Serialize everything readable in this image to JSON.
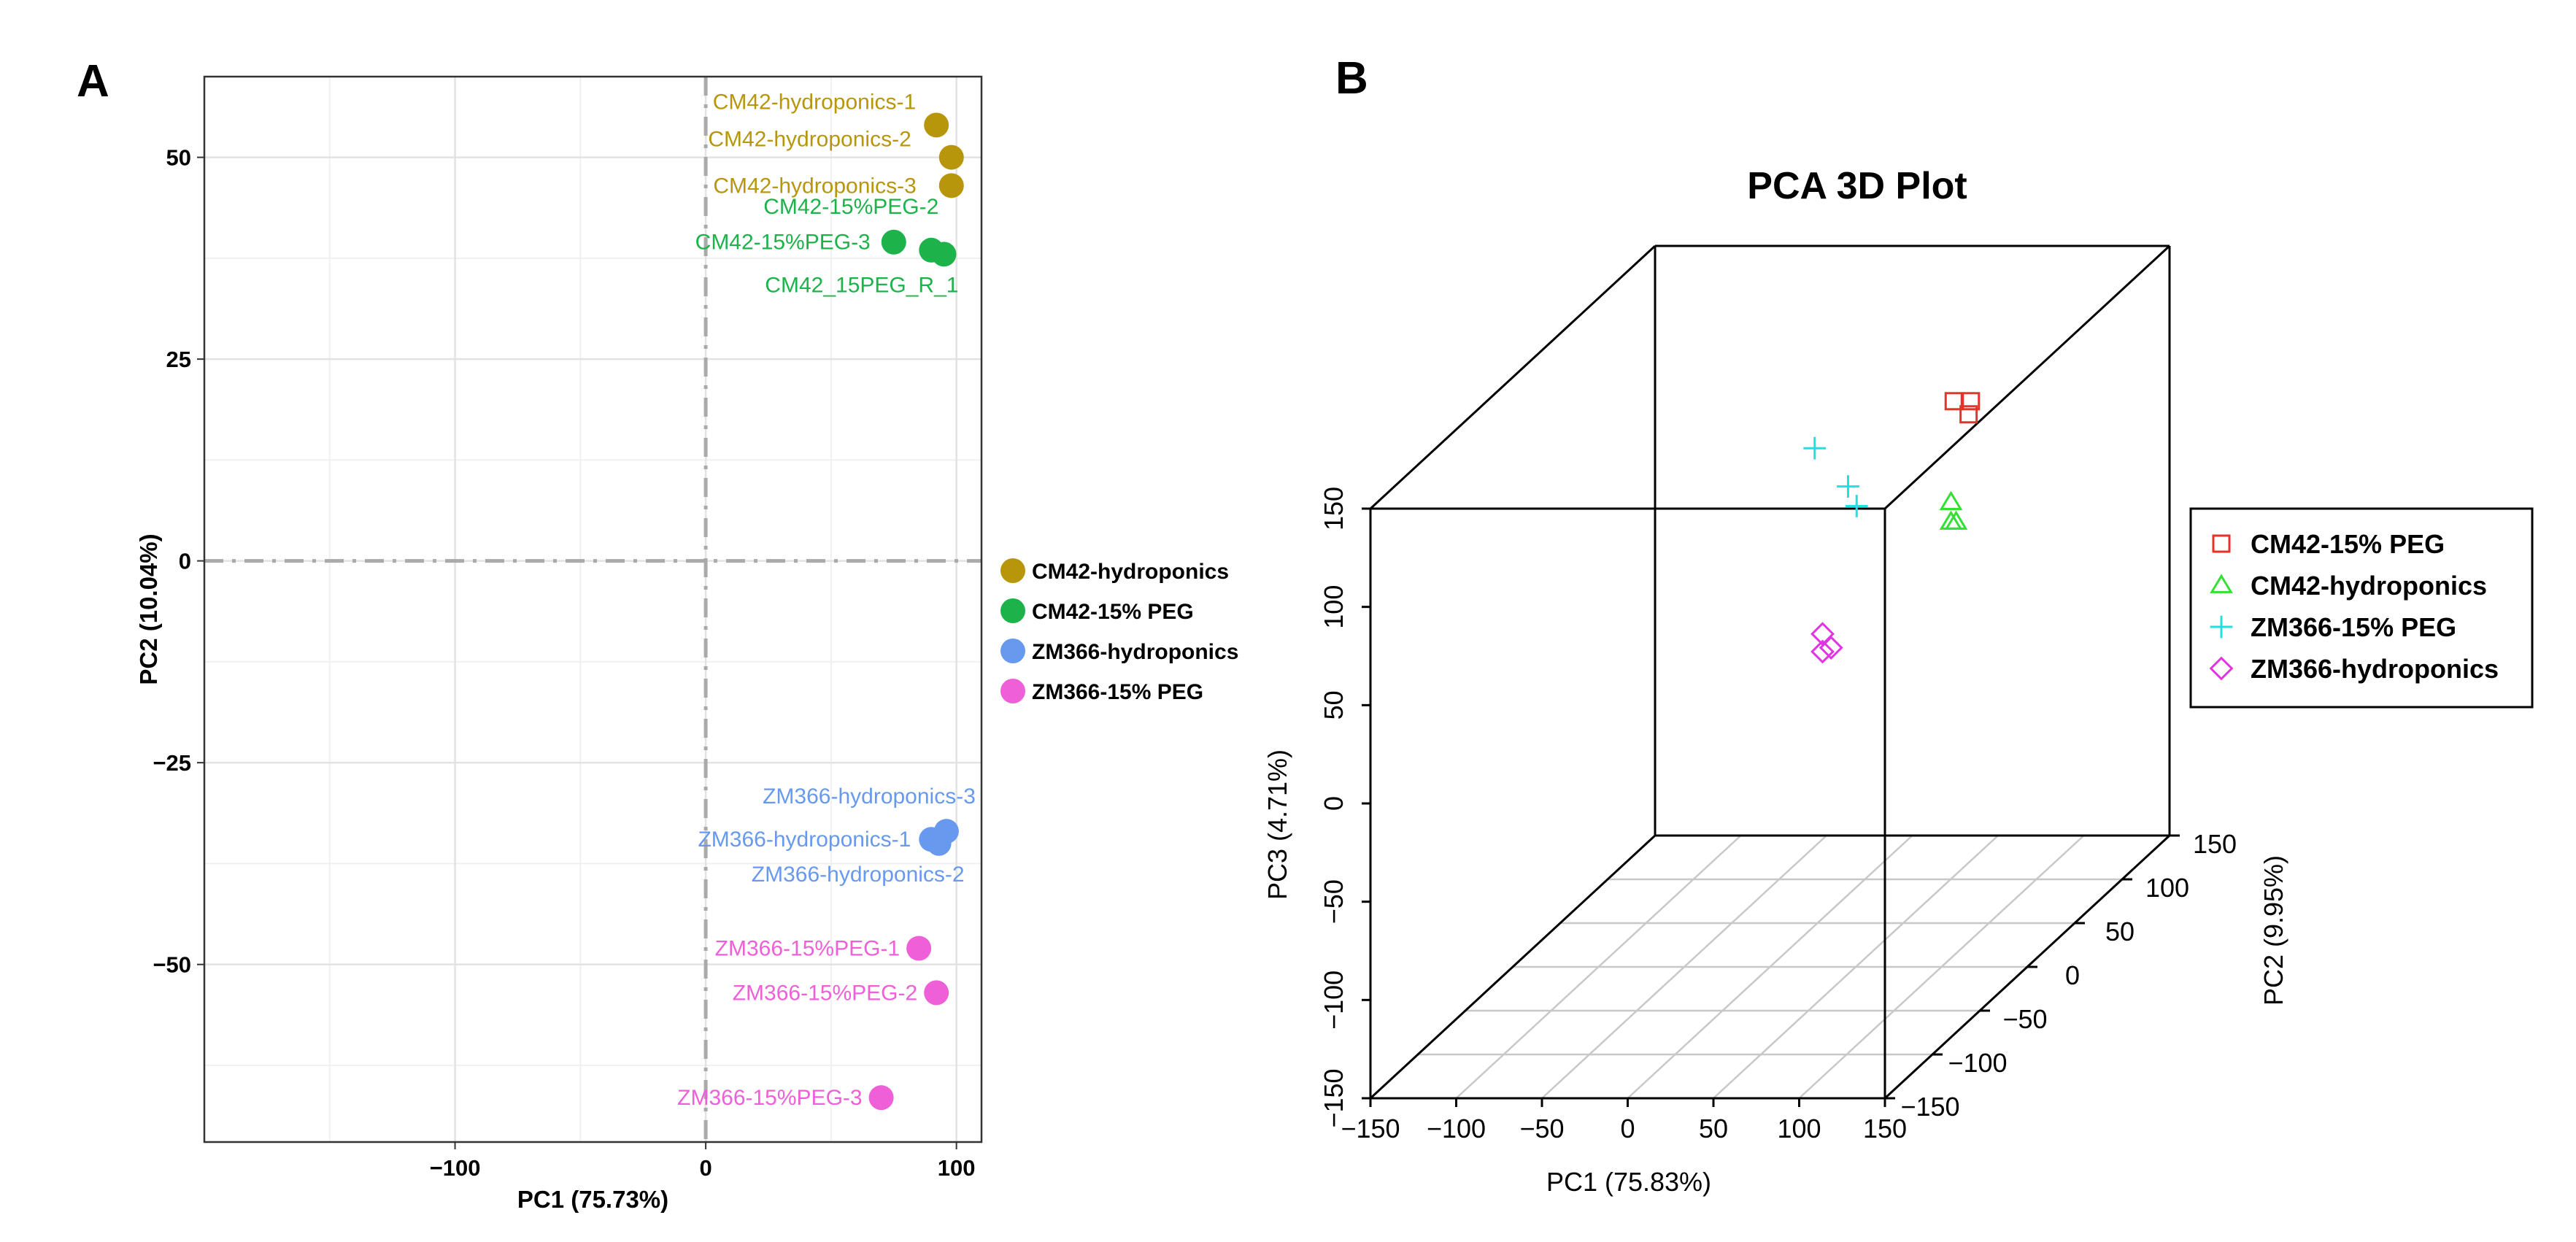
{
  "panels": {
    "left_letter": "A",
    "right_letter": "B"
  },
  "chart_data": [
    {
      "type": "scatter",
      "title": "",
      "xlabel": "PC1 (75.73%)",
      "ylabel": "PC2 (10.04%)",
      "xlim": [
        -200,
        110
      ],
      "ylim": [
        -72,
        60
      ],
      "xticks": [
        -100,
        0,
        100
      ],
      "yticks": [
        -50,
        -25,
        0,
        25,
        50
      ],
      "xtick_labels": [
        "−100",
        "0",
        "100"
      ],
      "ytick_labels": [
        "−50",
        "−25",
        "0",
        "25",
        "50"
      ],
      "grid": true,
      "legend_position": "right",
      "series": [
        {
          "name": "CM42-hydroponics",
          "color": "#B8960C",
          "points": [
            {
              "x": 92,
              "y": 54,
              "label": "CM42-hydroponics-1"
            },
            {
              "x": 98,
              "y": 50,
              "label": "CM42-hydroponics-2"
            },
            {
              "x": 98,
              "y": 46.5,
              "label": "CM42-hydroponics-3"
            }
          ]
        },
        {
          "name": "CM42-15% PEG",
          "color": "#1DB24A",
          "points": [
            {
              "x": 90,
              "y": 38.5,
              "label": "CM42-15%PEG-2"
            },
            {
              "x": 75,
              "y": 39.5,
              "label": "CM42-15%PEG-3"
            },
            {
              "x": 95,
              "y": 38,
              "label": "CM42_15PEG_R_1"
            }
          ]
        },
        {
          "name": "ZM366-hydroponics",
          "color": "#6799EE",
          "points": [
            {
              "x": 96,
              "y": -33.5,
              "label": "ZM366-hydroponics-3"
            },
            {
              "x": 90,
              "y": -34.5,
              "label": "ZM366-hydroponics-1"
            },
            {
              "x": 93,
              "y": -35,
              "label": "ZM366-hydroponics-2"
            }
          ]
        },
        {
          "name": "ZM366-15% PEG",
          "color": "#EE5FD8",
          "points": [
            {
              "x": 85,
              "y": -48,
              "label": "ZM366-15%PEG-1"
            },
            {
              "x": 92,
              "y": -53.5,
              "label": "ZM366-15%PEG-2"
            },
            {
              "x": 70,
              "y": -66.5,
              "label": "ZM366-15%PEG-3"
            }
          ]
        }
      ]
    },
    {
      "type": "scatter3d",
      "title": "PCA 3D Plot",
      "xlabel": "PC1 (75.83%)",
      "ylabel": "PC2 (9.95%)",
      "zlabel": "PC3 (4.71%)",
      "xlim": [
        -150,
        150
      ],
      "ylim": [
        -150,
        150
      ],
      "zlim": [
        -150,
        150
      ],
      "xticks": [
        -150,
        -100,
        -50,
        0,
        50,
        100,
        150
      ],
      "yticks": [
        -150,
        -100,
        -50,
        0,
        50,
        100,
        150
      ],
      "zticks": [
        -150,
        -100,
        -50,
        0,
        50,
        100,
        150
      ],
      "xtick_labels": [
        "−150",
        "−100",
        "−50",
        "0",
        "50",
        "100",
        "150"
      ],
      "ytick_labels": [
        "−150",
        "−100",
        "−50",
        "0",
        "50",
        "100",
        "150"
      ],
      "ztick_labels": [
        "−150",
        "−100",
        "−50",
        "0",
        "50",
        "100",
        "150"
      ],
      "legend_position": "right",
      "series": [
        {
          "name": "CM42-15% PEG",
          "color": "#E8312A",
          "marker": "square",
          "points": [
            {
              "x": 85,
              "y": 40,
              "z": 120
            },
            {
              "x": 95,
              "y": 40,
              "z": 120
            },
            {
              "x": 97,
              "y": 34,
              "z": 116
            }
          ]
        },
        {
          "name": "CM42-hydroponics",
          "color": "#33E033",
          "marker": "triangle",
          "points": [
            {
              "x": 100,
              "y": 10,
              "z": 82
            },
            {
              "x": 100,
              "y": 10,
              "z": 72
            },
            {
              "x": 103,
              "y": 10,
              "z": 72
            }
          ]
        },
        {
          "name": "ZM366-15% PEG",
          "color": "#22E0E0",
          "marker": "plus",
          "points": [
            {
              "x": 15,
              "y": 20,
              "z": 105
            },
            {
              "x": 40,
              "y": 10,
              "z": 90
            },
            {
              "x": 45,
              "y": 10,
              "z": 80
            }
          ]
        },
        {
          "name": "ZM366-hydroponics",
          "color": "#E035E0",
          "marker": "diamond",
          "points": [
            {
              "x": 50,
              "y": -35,
              "z": 35
            },
            {
              "x": 50,
              "y": -35,
              "z": 26
            },
            {
              "x": 55,
              "y": -35,
              "z": 28
            }
          ]
        }
      ]
    }
  ]
}
